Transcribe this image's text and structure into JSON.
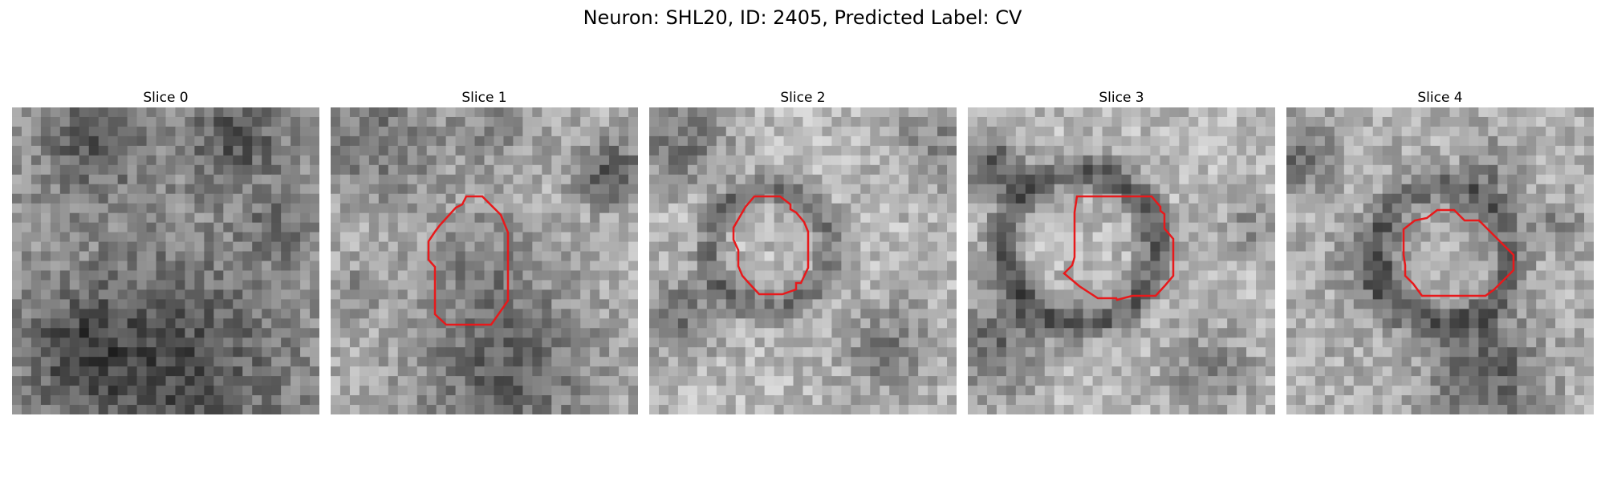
{
  "figure": {
    "title": "Neuron: SHL20, ID: 2405, Predicted Label: CV"
  },
  "panels": [
    {
      "title": "Slice 0",
      "has_outline": false
    },
    {
      "title": "Slice 1",
      "has_outline": true
    },
    {
      "title": "Slice 2",
      "has_outline": true
    },
    {
      "title": "Slice 3",
      "has_outline": true
    },
    {
      "title": "Slice 4",
      "has_outline": true
    }
  ],
  "colors": {
    "outline": "#e8191b",
    "background": "#ffffff"
  },
  "image_style": "grayscale-microscopy-32x32"
}
